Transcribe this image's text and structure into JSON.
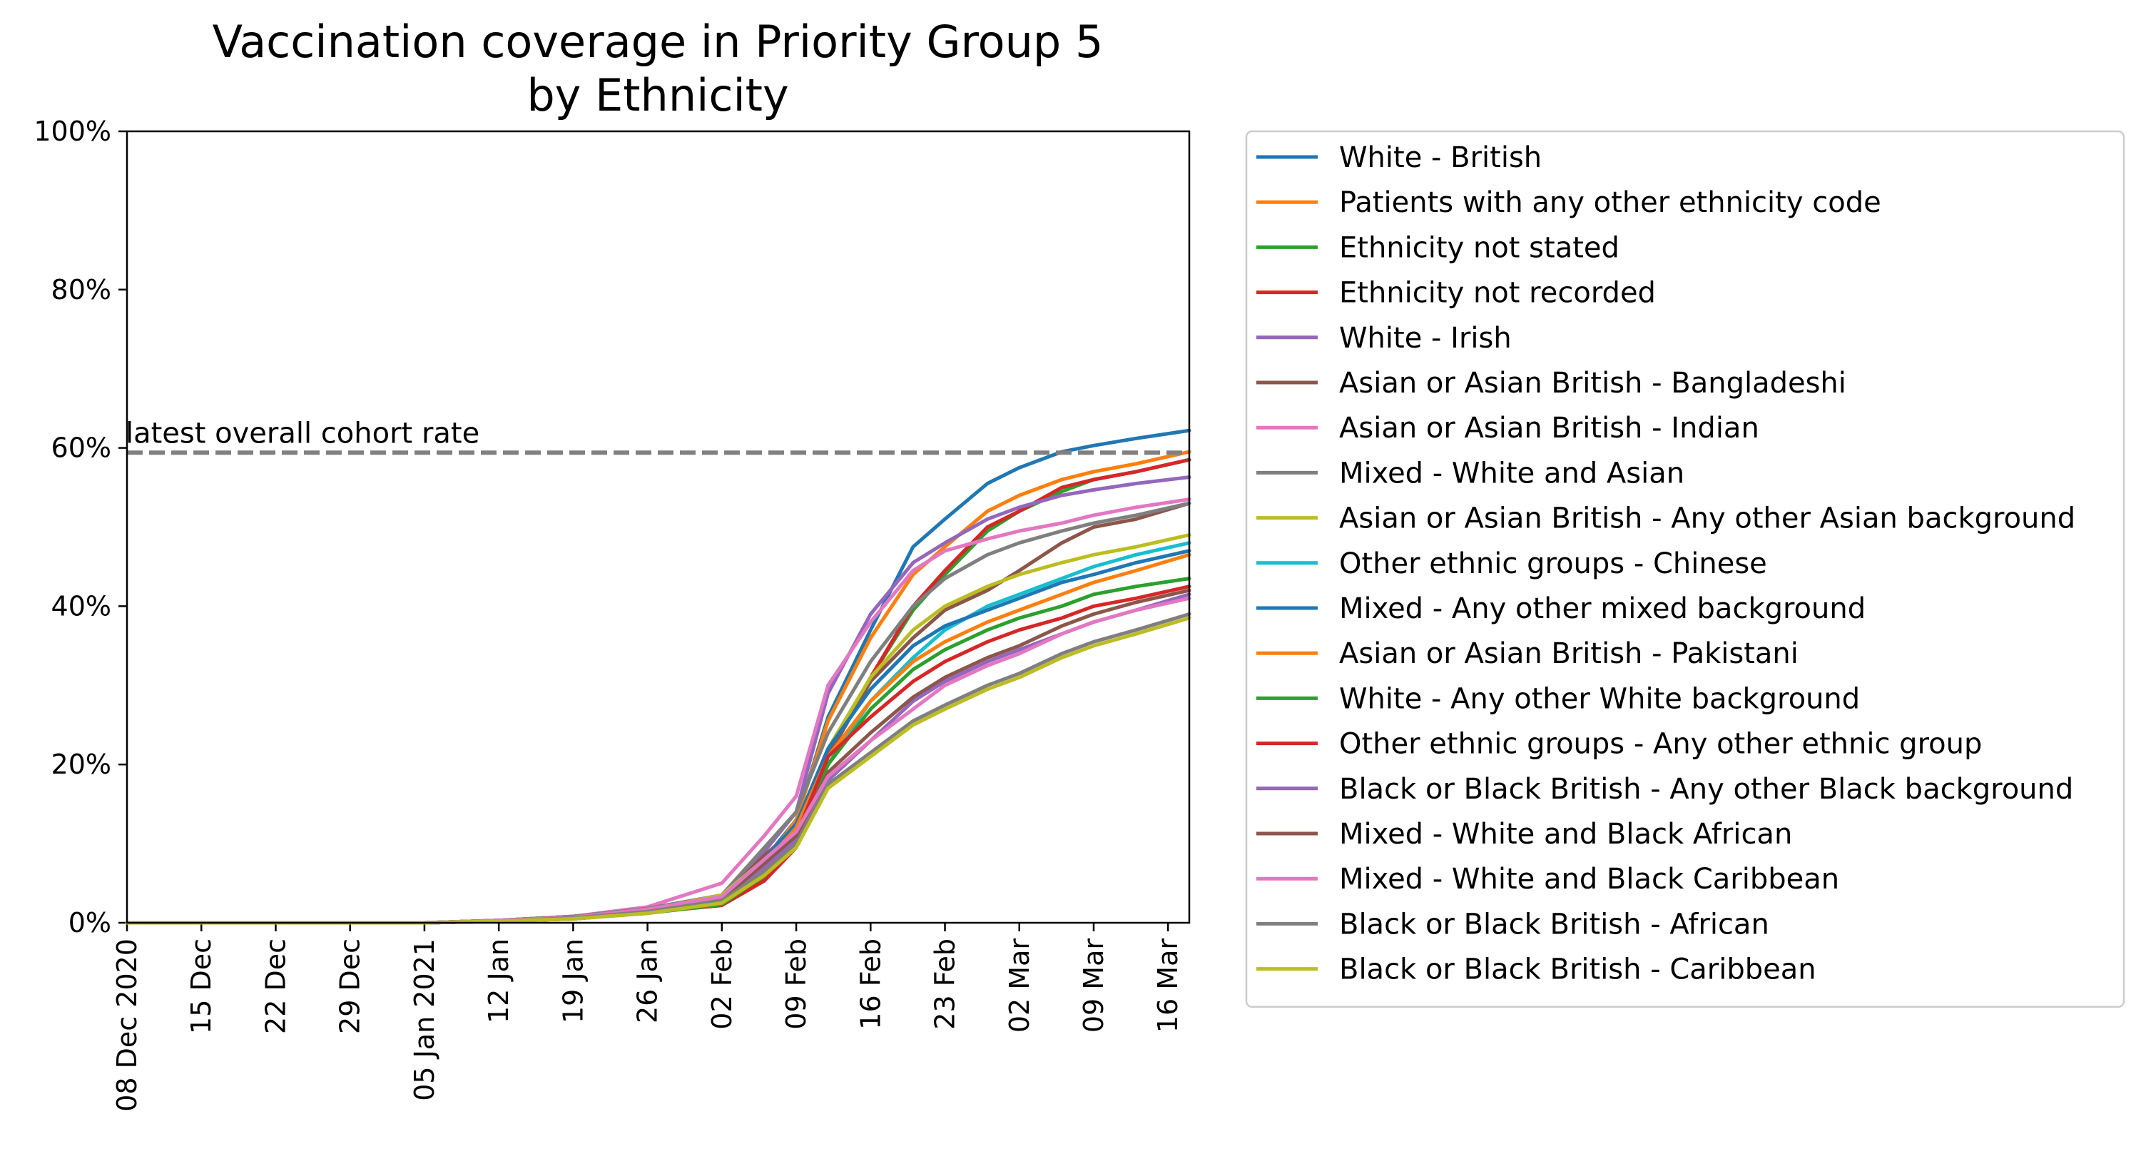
{
  "chart_data": {
    "type": "line",
    "title": [
      "Vaccination coverage in Priority Group 5",
      "by Ethnicity"
    ],
    "xlabel": "",
    "ylabel": "",
    "ylim": [
      0,
      100
    ],
    "y_ticks": [
      "0%",
      "20%",
      "40%",
      "60%",
      "80%",
      "100%"
    ],
    "y_tick_values": [
      0,
      20,
      40,
      60,
      80,
      100
    ],
    "x_start": "2020-12-08",
    "x_end": "2021-03-18",
    "x_ticks": [
      {
        "date": "2020-12-08",
        "label": "08 Dec 2020"
      },
      {
        "date": "2020-12-15",
        "label": "15 Dec"
      },
      {
        "date": "2020-12-22",
        "label": "22 Dec"
      },
      {
        "date": "2020-12-29",
        "label": "29 Dec"
      },
      {
        "date": "2021-01-05",
        "label": "05 Jan 2021"
      },
      {
        "date": "2021-01-12",
        "label": "12 Jan"
      },
      {
        "date": "2021-01-19",
        "label": "19 Jan"
      },
      {
        "date": "2021-01-26",
        "label": "26 Jan"
      },
      {
        "date": "2021-02-02",
        "label": "02 Feb"
      },
      {
        "date": "2021-02-09",
        "label": "09 Feb"
      },
      {
        "date": "2021-02-16",
        "label": "16 Feb"
      },
      {
        "date": "2021-02-23",
        "label": "23 Feb"
      },
      {
        "date": "2021-03-02",
        "label": "02 Mar"
      },
      {
        "date": "2021-03-09",
        "label": "09 Mar"
      },
      {
        "date": "2021-03-16",
        "label": "16 Mar"
      }
    ],
    "reference_line": {
      "value": 59.4,
      "label": "latest overall cohort rate",
      "color": "#808080"
    },
    "x": [
      "2020-12-08",
      "2021-01-05",
      "2021-01-12",
      "2021-01-19",
      "2021-01-26",
      "2021-02-02",
      "2021-02-06",
      "2021-02-09",
      "2021-02-12",
      "2021-02-16",
      "2021-02-20",
      "2021-02-23",
      "2021-02-27",
      "2021-03-02",
      "2021-03-06",
      "2021-03-09",
      "2021-03-13",
      "2021-03-18"
    ],
    "legend_position": "outside-right",
    "grid": false,
    "series": [
      {
        "name": "White - British",
        "color": "#1f77b4",
        "values": [
          0,
          0,
          0.3,
          0.8,
          1.8,
          3.0,
          8.0,
          13.0,
          26.0,
          37.0,
          47.5,
          51.0,
          55.5,
          57.5,
          59.5,
          60.3,
          61.2,
          62.2
        ]
      },
      {
        "name": "Patients with any other ethnicity code",
        "color": "#ff7f0e",
        "values": [
          0,
          0,
          0.3,
          0.7,
          1.7,
          3.2,
          7.5,
          13.0,
          25.5,
          36.0,
          44.0,
          47.5,
          52.0,
          54.0,
          56.0,
          57.0,
          58.0,
          59.5
        ]
      },
      {
        "name": "Ethnicity not stated",
        "color": "#2ca02c",
        "values": [
          0,
          0,
          0.2,
          0.5,
          1.3,
          2.3,
          5.5,
          10.0,
          21.0,
          31.0,
          39.5,
          44.0,
          49.5,
          52.0,
          54.5,
          56.0,
          57.0,
          58.5
        ]
      },
      {
        "name": "Ethnicity not recorded",
        "color": "#d62728",
        "values": [
          0,
          0,
          0.2,
          0.5,
          1.3,
          2.2,
          5.3,
          9.5,
          21.0,
          31.0,
          40.0,
          44.5,
          50.0,
          52.0,
          55.0,
          56.0,
          57.0,
          58.5
        ]
      },
      {
        "name": "White - Irish",
        "color": "#9467bd",
        "values": [
          0,
          0,
          0.3,
          0.8,
          1.8,
          3.2,
          9.0,
          14.0,
          29.0,
          39.0,
          45.5,
          48.0,
          51.0,
          52.5,
          54.0,
          54.7,
          55.5,
          56.3
        ]
      },
      {
        "name": "Asian or Asian British - Bangladeshi",
        "color": "#8c564b",
        "values": [
          0,
          0,
          0.3,
          0.8,
          1.8,
          3.2,
          8.5,
          12.0,
          21.0,
          30.5,
          36.0,
          39.5,
          42.0,
          44.5,
          48.0,
          50.0,
          51.0,
          53.0
        ]
      },
      {
        "name": "Asian or Asian British - Indian",
        "color": "#e377c2",
        "values": [
          0,
          0,
          0.3,
          0.8,
          2.0,
          5.0,
          11.0,
          16.0,
          30.0,
          38.0,
          44.5,
          47.0,
          48.5,
          49.5,
          50.5,
          51.5,
          52.5,
          53.5
        ]
      },
      {
        "name": "Mixed - White and Asian",
        "color": "#7f7f7f",
        "values": [
          0,
          0,
          0.3,
          0.8,
          1.8,
          3.5,
          9.5,
          14.0,
          24.0,
          33.0,
          40.0,
          43.5,
          46.5,
          48.0,
          49.5,
          50.5,
          51.5,
          53.0
        ]
      },
      {
        "name": "Asian or Asian British - Any other Asian background",
        "color": "#bcbd22",
        "values": [
          0,
          0,
          0.2,
          0.6,
          1.6,
          3.5,
          8.0,
          12.5,
          22.0,
          31.0,
          37.0,
          40.0,
          42.5,
          44.0,
          45.5,
          46.5,
          47.5,
          49.0
        ]
      },
      {
        "name": "Other ethnic groups - Chinese",
        "color": "#17becf",
        "values": [
          0,
          0,
          0.2,
          0.6,
          1.4,
          2.6,
          6.5,
          11.0,
          20.0,
          28.0,
          33.5,
          37.0,
          40.0,
          41.5,
          43.5,
          45.0,
          46.5,
          48.0
        ]
      },
      {
        "name": "Mixed - Any other mixed background",
        "color": "#1f77b4",
        "values": [
          0,
          0,
          0.3,
          0.7,
          1.6,
          3.2,
          8.0,
          12.5,
          22.0,
          29.5,
          35.0,
          37.5,
          39.5,
          41.0,
          43.0,
          44.0,
          45.5,
          47.0
        ]
      },
      {
        "name": "Asian or Asian British - Pakistani",
        "color": "#ff7f0e",
        "values": [
          0,
          0,
          0.2,
          0.6,
          1.5,
          3.0,
          7.5,
          12.0,
          21.0,
          28.0,
          33.0,
          35.5,
          38.0,
          39.5,
          41.5,
          43.0,
          44.5,
          46.5
        ]
      },
      {
        "name": "White - Any other White background",
        "color": "#2ca02c",
        "values": [
          0,
          0,
          0.2,
          0.5,
          1.2,
          2.3,
          6.0,
          10.5,
          20.0,
          27.0,
          32.0,
          34.5,
          37.0,
          38.5,
          40.0,
          41.5,
          42.5,
          43.5
        ]
      },
      {
        "name": "Other ethnic groups - Any other ethnic group",
        "color": "#d62728",
        "values": [
          0,
          0,
          0.2,
          0.5,
          1.3,
          2.5,
          6.5,
          11.0,
          21.0,
          26.0,
          30.5,
          33.0,
          35.5,
          37.0,
          38.5,
          40.0,
          41.0,
          42.5
        ]
      },
      {
        "name": "Black or Black British - Any other Black background",
        "color": "#9467bd",
        "values": [
          0,
          0,
          0.2,
          0.6,
          1.5,
          3.0,
          7.0,
          10.5,
          18.0,
          23.0,
          28.0,
          30.5,
          33.0,
          34.5,
          36.5,
          38.0,
          39.5,
          41.5
        ]
      },
      {
        "name": "Mixed - White and Black African",
        "color": "#8c564b",
        "values": [
          0,
          0,
          0.3,
          0.7,
          1.6,
          3.0,
          7.5,
          11.0,
          19.0,
          24.0,
          28.5,
          31.0,
          33.5,
          35.0,
          37.5,
          39.0,
          40.5,
          42.0
        ]
      },
      {
        "name": "Mixed - White and Black Caribbean",
        "color": "#e377c2",
        "values": [
          0,
          0,
          0.3,
          0.7,
          1.7,
          3.3,
          8.0,
          11.5,
          18.5,
          23.0,
          27.0,
          30.0,
          32.5,
          34.0,
          36.5,
          38.0,
          39.5,
          41.0
        ]
      },
      {
        "name": "Black or Black British - African",
        "color": "#7f7f7f",
        "values": [
          0,
          0,
          0.2,
          0.6,
          1.4,
          2.8,
          6.5,
          10.0,
          17.5,
          21.5,
          25.5,
          27.5,
          30.0,
          31.5,
          34.0,
          35.5,
          37.0,
          39.0
        ]
      },
      {
        "name": "Black or Black British - Caribbean",
        "color": "#bcbd22",
        "values": [
          0,
          0,
          0.2,
          0.5,
          1.2,
          2.5,
          6.0,
          9.5,
          17.0,
          21.0,
          25.0,
          27.0,
          29.5,
          31.0,
          33.5,
          35.0,
          36.5,
          38.5
        ]
      }
    ]
  }
}
